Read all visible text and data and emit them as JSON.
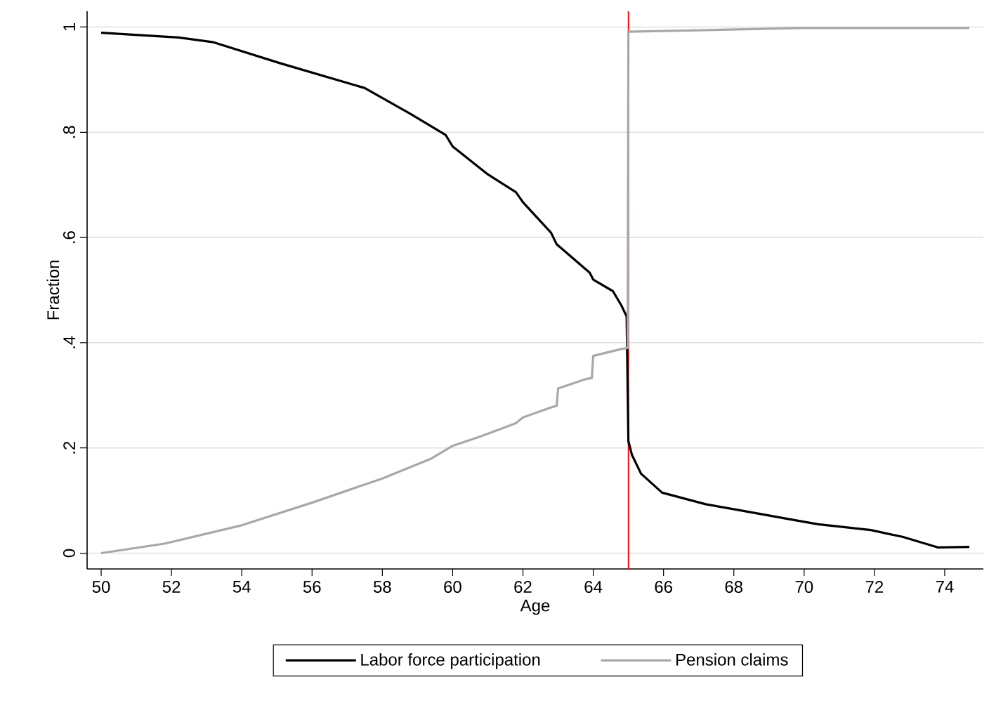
{
  "chart_data": {
    "type": "line",
    "xlabel": "Age",
    "ylabel": "Fraction",
    "xlim": [
      49.6,
      75.1
    ],
    "ylim": [
      -0.03,
      1.03
    ],
    "xticks": [
      50,
      52,
      54,
      56,
      58,
      60,
      62,
      64,
      66,
      68,
      70,
      72,
      74
    ],
    "yticks": [
      {
        "value": 0,
        "label": "0"
      },
      {
        "value": 0.2,
        "label": ".2"
      },
      {
        "value": 0.4,
        "label": ".4"
      },
      {
        "value": 0.6,
        "label": ".6"
      },
      {
        "value": 0.8,
        "label": ".8"
      },
      {
        "value": 1,
        "label": "1"
      }
    ],
    "grid": "y",
    "legend": "bottom",
    "marker": "none",
    "line_style": "solid",
    "ref_lines": [
      {
        "axis": "x",
        "value": 65,
        "color": "#ff0000"
      }
    ],
    "series": [
      {
        "name": "Labor force participation",
        "color": "#000000",
        "x": [
          50.0,
          52.2,
          53.2,
          55.1,
          57.5,
          58.8,
          59.8,
          60.0,
          61.0,
          61.8,
          62.0,
          62.8,
          62.96,
          63.9,
          64.0,
          64.56,
          64.8,
          64.95,
          65.0,
          65.1,
          65.36,
          65.96,
          67.2,
          68.3,
          69.8,
          70.4,
          71.9,
          72.8,
          73.8,
          74.7
        ],
        "values": [
          0.989,
          0.98,
          0.971,
          0.931,
          0.884,
          0.835,
          0.795,
          0.773,
          0.72,
          0.686,
          0.667,
          0.609,
          0.587,
          0.533,
          0.52,
          0.498,
          0.471,
          0.45,
          0.213,
          0.187,
          0.151,
          0.115,
          0.093,
          0.08,
          0.062,
          0.055,
          0.044,
          0.031,
          0.011,
          0.012
        ]
      },
      {
        "name": "Pension claims",
        "color": "#a8a8a8",
        "x": [
          50.0,
          51.8,
          54.0,
          56.0,
          58.0,
          59.4,
          60.0,
          60.8,
          61.8,
          62.0,
          62.8,
          62.96,
          63.0,
          63.8,
          63.96,
          64.0,
          64.8,
          64.98,
          65.0,
          69.9,
          74.7
        ],
        "values": [
          0.0,
          0.018,
          0.053,
          0.096,
          0.142,
          0.18,
          0.204,
          0.222,
          0.247,
          0.258,
          0.277,
          0.28,
          0.313,
          0.331,
          0.333,
          0.375,
          0.388,
          0.39,
          0.991,
          0.998,
          0.998
        ]
      }
    ]
  }
}
